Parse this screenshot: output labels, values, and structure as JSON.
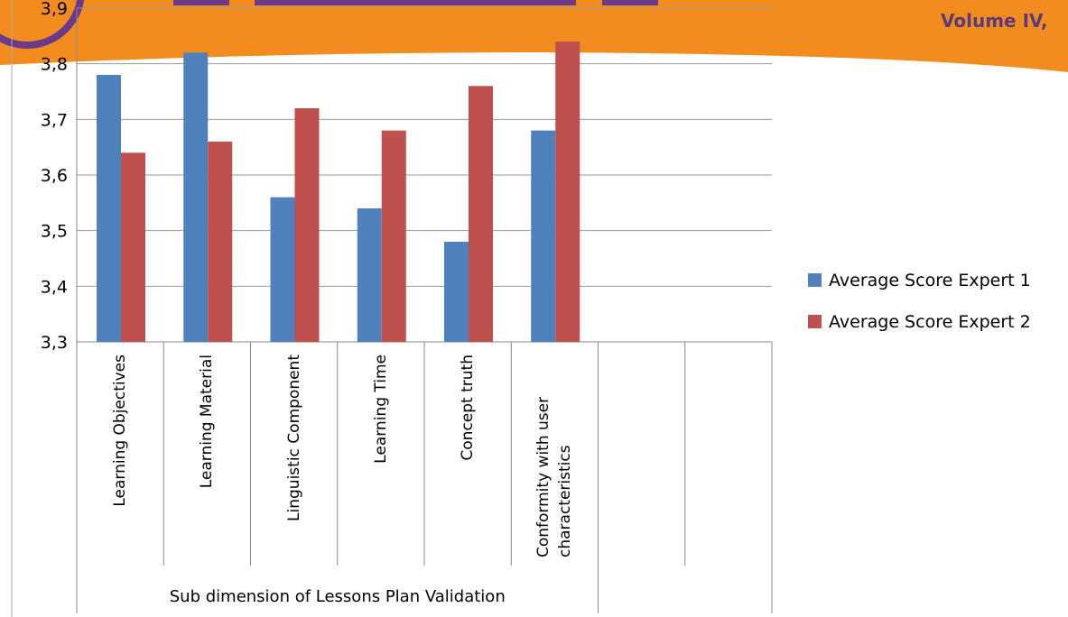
{
  "banner_text": "Volume IV,",
  "chart_data": {
    "type": "bar",
    "categories": [
      "Learning Objectives",
      "Learning Material",
      "Linguistic Component",
      "Learning Time",
      "Concept truth",
      "Conformity with user characteristics",
      null,
      null
    ],
    "group_label": "Sub dimension of Lessons Plan Validation",
    "series": [
      {
        "name": "Average Score Expert 1",
        "color": "#4f81bd",
        "values": [
          3.78,
          3.82,
          3.56,
          3.54,
          3.48,
          3.68,
          null,
          null
        ]
      },
      {
        "name": "Average Score Expert 2",
        "color": "#c0504d",
        "values": [
          3.64,
          3.66,
          3.72,
          3.68,
          3.76,
          3.84,
          null,
          null
        ]
      }
    ],
    "ylim": [
      3.3,
      3.9
    ],
    "yticks": [
      {
        "value": 3.3,
        "label": "3,3"
      },
      {
        "value": 3.4,
        "label": "3,4"
      },
      {
        "value": 3.5,
        "label": "3,5"
      },
      {
        "value": 3.6,
        "label": "3,6"
      },
      {
        "value": 3.7,
        "label": "3,7"
      },
      {
        "value": 3.8,
        "label": "3,8"
      },
      {
        "value": 3.9,
        "label": "3,9"
      }
    ],
    "grid": true,
    "legend": "right"
  }
}
